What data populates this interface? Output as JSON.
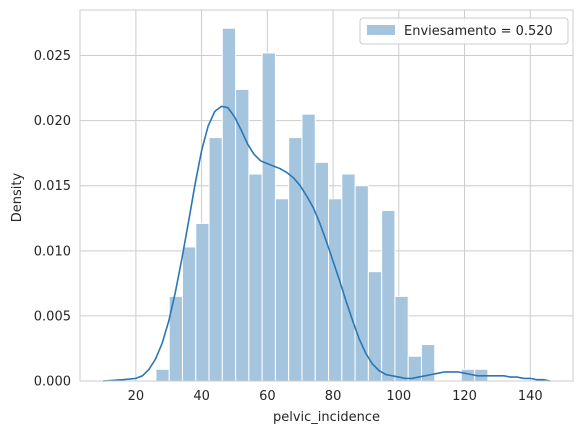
{
  "chart_data": {
    "type": "histogram",
    "xlabel": "pelvic_incidence",
    "ylabel": "Density",
    "xlim": [
      3,
      153
    ],
    "ylim": [
      0,
      0.0285
    ],
    "x_ticks": [
      20,
      40,
      60,
      80,
      100,
      120,
      140
    ],
    "x_tick_labels": [
      "20",
      "40",
      "60",
      "80",
      "100",
      "120",
      "140"
    ],
    "y_ticks": [
      0.0,
      0.005,
      0.01,
      0.015,
      0.02,
      0.025
    ],
    "y_tick_labels": [
      "0.000",
      "0.005",
      "0.010",
      "0.015",
      "0.020",
      "0.025"
    ],
    "grid": true,
    "legend_position": "top-right",
    "legend": [
      "Enviesamento = 0.520"
    ],
    "colors": {
      "hist": "#a5c5df",
      "hist_edge": "#ffffff",
      "kde": "#2a77b4",
      "grid": "#cccccc",
      "frame": "#cccccc"
    },
    "histogram": {
      "bin_edges": [
        26.1,
        30.14,
        34.18,
        38.22,
        42.26,
        46.3,
        50.34,
        54.38,
        58.42,
        62.46,
        66.5,
        70.54,
        74.58,
        78.62,
        82.66,
        86.7,
        90.74,
        94.78,
        98.82,
        102.86,
        106.9,
        110.94,
        114.98,
        119.02,
        123.06,
        127.1,
        131.14
      ],
      "density": [
        0.0009,
        0.0065,
        0.0103,
        0.0121,
        0.0187,
        0.0271,
        0.0224,
        0.0159,
        0.0252,
        0.014,
        0.0187,
        0.0205,
        0.0168,
        0.014,
        0.0159,
        0.015,
        0.0084,
        0.0131,
        0.0065,
        0.0019,
        0.0028,
        0.0,
        0.0,
        0.0009,
        0.0009,
        0.0,
        0.0009
      ]
    },
    "kde": {
      "x": [
        10,
        16,
        20,
        22,
        24,
        26,
        28,
        30,
        32,
        34,
        36,
        38,
        40,
        42,
        44,
        46,
        48,
        50,
        52,
        54,
        56,
        58,
        60,
        62,
        64,
        66,
        68,
        70,
        72,
        74,
        76,
        78,
        80,
        82,
        84,
        86,
        88,
        90,
        92,
        94,
        96,
        98,
        100,
        102,
        104,
        106,
        108,
        110,
        112,
        114,
        116,
        118,
        120,
        122,
        124,
        126,
        128,
        130,
        132,
        134,
        136,
        138,
        140,
        142,
        144,
        146
      ],
      "y": [
        0.0,
        0.0001,
        0.0002,
        0.0004,
        0.0009,
        0.0017,
        0.0029,
        0.0046,
        0.0068,
        0.0094,
        0.0122,
        0.0151,
        0.0177,
        0.0196,
        0.0207,
        0.0211,
        0.021,
        0.0203,
        0.0193,
        0.0182,
        0.0174,
        0.0169,
        0.0167,
        0.0165,
        0.0163,
        0.016,
        0.0156,
        0.015,
        0.0142,
        0.0133,
        0.0121,
        0.0107,
        0.0092,
        0.0077,
        0.0061,
        0.0046,
        0.0032,
        0.0021,
        0.0013,
        0.0008,
        0.0005,
        0.0004,
        0.0003,
        0.0002,
        0.0002,
        0.0003,
        0.0004,
        0.0005,
        0.0006,
        0.0007,
        0.0007,
        0.0007,
        0.0006,
        0.0005,
        0.0004,
        0.0004,
        0.0004,
        0.0004,
        0.0004,
        0.0003,
        0.0003,
        0.0002,
        0.0002,
        0.0001,
        0.0001,
        0.0
      ]
    }
  }
}
